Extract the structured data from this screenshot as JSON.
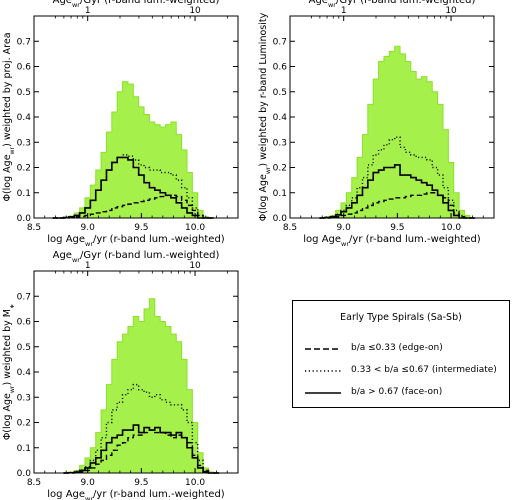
{
  "fill_color": "#a6f04c",
  "fill_edge_color": "#8ee02a",
  "legend": {
    "title": "Early Type Spirals (Sa-Sb)",
    "items": [
      {
        "style": "dashed",
        "label": "b/a ≤0.33 (edge-on)"
      },
      {
        "style": "dotted",
        "label": "0.33 < b/a ≤0.67 (intermediate)"
      },
      {
        "style": "solid",
        "label": "b/a > 0.67 (face-on)"
      }
    ]
  },
  "chart_data": [
    {
      "type": "area",
      "top_xlabel": "Age_wr/Gyr (r-band lum.-weighted)",
      "top_ticks": [
        {
          "value": 1,
          "label": "1"
        },
        {
          "value": 10,
          "label": "10"
        }
      ],
      "xlabel": "log Age_wr/yr (r-band lum.-weighted)",
      "ylabel": "Φ(log Age_wr) weighted by proj. Area",
      "xlim": [
        8.5,
        10.4
      ],
      "ylim": [
        0.0,
        0.8
      ],
      "x_ticks": [
        8.5,
        9.0,
        9.5,
        10.0
      ],
      "x_tick_labels": [
        "8.5",
        "9.0",
        "9.5",
        "10.0"
      ],
      "y_ticks": [
        0.0,
        0.1,
        0.2,
        0.3,
        0.4,
        0.5,
        0.6,
        0.7
      ],
      "y_tick_labels": [
        "0.0",
        "0.1",
        "0.2",
        "0.3",
        "0.4",
        "0.5",
        "0.6",
        "0.7"
      ],
      "x": [
        8.7,
        8.75,
        8.8,
        8.85,
        8.9,
        8.95,
        9.0,
        9.05,
        9.1,
        9.15,
        9.2,
        9.25,
        9.3,
        9.35,
        9.4,
        9.45,
        9.5,
        9.55,
        9.6,
        9.65,
        9.7,
        9.75,
        9.8,
        9.85,
        9.9,
        9.95,
        10.0,
        10.05,
        10.1,
        10.15
      ],
      "series": [
        {
          "style": "fill",
          "values": [
            0.0,
            0.0,
            0.003,
            0.008,
            0.02,
            0.04,
            0.08,
            0.13,
            0.19,
            0.26,
            0.34,
            0.42,
            0.5,
            0.54,
            0.53,
            0.48,
            0.44,
            0.41,
            0.38,
            0.37,
            0.36,
            0.37,
            0.38,
            0.33,
            0.27,
            0.18,
            0.1,
            0.03,
            0.005,
            0.0
          ]
        },
        {
          "style": "dotted",
          "values": [
            0.0,
            0.0,
            0.002,
            0.005,
            0.01,
            0.02,
            0.04,
            0.07,
            0.11,
            0.15,
            0.19,
            0.22,
            0.24,
            0.25,
            0.245,
            0.23,
            0.21,
            0.2,
            0.19,
            0.19,
            0.18,
            0.18,
            0.17,
            0.15,
            0.12,
            0.08,
            0.04,
            0.01,
            0.0,
            0.0
          ]
        },
        {
          "style": "solid",
          "values": [
            0.0,
            0.0,
            0.002,
            0.005,
            0.01,
            0.02,
            0.04,
            0.07,
            0.11,
            0.15,
            0.19,
            0.22,
            0.24,
            0.24,
            0.23,
            0.2,
            0.17,
            0.14,
            0.12,
            0.11,
            0.1,
            0.09,
            0.08,
            0.06,
            0.04,
            0.02,
            0.01,
            0.0,
            0.0,
            0.0
          ]
        },
        {
          "style": "dashed",
          "values": [
            0.0,
            0.0,
            0.0,
            0.002,
            0.004,
            0.006,
            0.01,
            0.015,
            0.02,
            0.025,
            0.03,
            0.04,
            0.045,
            0.05,
            0.055,
            0.06,
            0.065,
            0.07,
            0.075,
            0.08,
            0.085,
            0.09,
            0.09,
            0.085,
            0.07,
            0.05,
            0.03,
            0.01,
            0.0,
            0.0
          ]
        }
      ]
    },
    {
      "type": "area",
      "top_xlabel": "Age_wr/Gyr (r-band lum.-weighted)",
      "top_ticks": [
        {
          "value": 1,
          "label": "1"
        },
        {
          "value": 10,
          "label": "10"
        }
      ],
      "xlabel": "log Age_wr/yr (r-band lum.-weighted)",
      "ylabel": "Φ(log Age_wr) weighted by r-band Luminosity",
      "xlim": [
        8.5,
        10.4
      ],
      "ylim": [
        0.0,
        0.8
      ],
      "x_ticks": [
        8.5,
        9.0,
        9.5,
        10.0
      ],
      "x_tick_labels": [
        "8.5",
        "9.0",
        "9.5",
        "10.0"
      ],
      "y_ticks": [
        0.0,
        0.1,
        0.2,
        0.3,
        0.4,
        0.5,
        0.6,
        0.7
      ],
      "y_tick_labels": [
        "0.0",
        "0.1",
        "0.2",
        "0.3",
        "0.4",
        "0.5",
        "0.6",
        "0.7"
      ],
      "x": [
        8.8,
        8.85,
        8.9,
        8.95,
        9.0,
        9.05,
        9.1,
        9.15,
        9.2,
        9.25,
        9.3,
        9.35,
        9.4,
        9.45,
        9.5,
        9.55,
        9.6,
        9.65,
        9.7,
        9.75,
        9.8,
        9.85,
        9.9,
        9.95,
        10.0,
        10.05,
        10.1,
        10.15,
        10.2
      ],
      "series": [
        {
          "style": "fill",
          "values": [
            0.0,
            0.005,
            0.01,
            0.03,
            0.06,
            0.1,
            0.16,
            0.24,
            0.33,
            0.45,
            0.55,
            0.62,
            0.64,
            0.66,
            0.68,
            0.65,
            0.62,
            0.58,
            0.55,
            0.56,
            0.54,
            0.5,
            0.45,
            0.35,
            0.22,
            0.1,
            0.03,
            0.01,
            0.0
          ]
        },
        {
          "style": "dotted",
          "values": [
            0.0,
            0.003,
            0.006,
            0.015,
            0.03,
            0.05,
            0.08,
            0.12,
            0.16,
            0.21,
            0.25,
            0.27,
            0.29,
            0.31,
            0.32,
            0.28,
            0.26,
            0.25,
            0.24,
            0.24,
            0.23,
            0.2,
            0.17,
            0.12,
            0.07,
            0.03,
            0.01,
            0.0,
            0.0
          ]
        },
        {
          "style": "solid",
          "values": [
            0.0,
            0.002,
            0.005,
            0.012,
            0.025,
            0.04,
            0.06,
            0.09,
            0.12,
            0.15,
            0.18,
            0.19,
            0.2,
            0.2,
            0.21,
            0.17,
            0.17,
            0.16,
            0.15,
            0.14,
            0.13,
            0.11,
            0.09,
            0.06,
            0.03,
            0.01,
            0.0,
            0.0,
            0.0
          ]
        },
        {
          "style": "dashed",
          "values": [
            0.0,
            0.0,
            0.002,
            0.005,
            0.01,
            0.015,
            0.02,
            0.03,
            0.04,
            0.05,
            0.06,
            0.065,
            0.07,
            0.075,
            0.08,
            0.08,
            0.085,
            0.09,
            0.09,
            0.095,
            0.1,
            0.1,
            0.09,
            0.08,
            0.05,
            0.02,
            0.005,
            0.0,
            0.0
          ]
        }
      ]
    },
    {
      "type": "area",
      "top_xlabel": "Age_wr/Gyr (r-band lum.-weighted)",
      "top_ticks": [
        {
          "value": 1,
          "label": "1"
        },
        {
          "value": 10,
          "label": "10"
        }
      ],
      "xlabel": "log Age_wr/yr (r-band lum.-weighted)",
      "ylabel": "Φ(log Age_wr) weighted by M*",
      "xlim": [
        8.5,
        10.4
      ],
      "ylim": [
        0.0,
        0.8
      ],
      "x_ticks": [
        8.5,
        9.0,
        9.5,
        10.0
      ],
      "x_tick_labels": [
        "8.5",
        "9.0",
        "9.5",
        "10.0"
      ],
      "y_ticks": [
        0.0,
        0.1,
        0.2,
        0.3,
        0.4,
        0.5,
        0.6,
        0.7
      ],
      "y_tick_labels": [
        "0.0",
        "0.1",
        "0.2",
        "0.3",
        "0.4",
        "0.5",
        "0.6",
        "0.7"
      ],
      "x": [
        8.8,
        8.85,
        8.9,
        8.95,
        9.0,
        9.05,
        9.1,
        9.15,
        9.2,
        9.25,
        9.3,
        9.35,
        9.4,
        9.45,
        9.5,
        9.55,
        9.6,
        9.65,
        9.7,
        9.75,
        9.8,
        9.85,
        9.9,
        9.95,
        10.0,
        10.05,
        10.1,
        10.15,
        10.2
      ],
      "series": [
        {
          "style": "fill",
          "values": [
            0.0,
            0.004,
            0.01,
            0.03,
            0.06,
            0.1,
            0.16,
            0.25,
            0.35,
            0.45,
            0.52,
            0.55,
            0.58,
            0.62,
            0.6,
            0.65,
            0.69,
            0.62,
            0.6,
            0.58,
            0.55,
            0.52,
            0.45,
            0.33,
            0.2,
            0.08,
            0.02,
            0.004,
            0.0
          ]
        },
        {
          "style": "dotted",
          "values": [
            0.0,
            0.002,
            0.005,
            0.012,
            0.025,
            0.05,
            0.09,
            0.14,
            0.2,
            0.25,
            0.28,
            0.31,
            0.33,
            0.35,
            0.33,
            0.32,
            0.3,
            0.31,
            0.29,
            0.28,
            0.27,
            0.27,
            0.25,
            0.2,
            0.12,
            0.05,
            0.01,
            0.0,
            0.0
          ]
        },
        {
          "style": "solid",
          "values": [
            0.0,
            0.001,
            0.004,
            0.01,
            0.02,
            0.04,
            0.06,
            0.09,
            0.12,
            0.14,
            0.15,
            0.17,
            0.17,
            0.19,
            0.16,
            0.18,
            0.17,
            0.18,
            0.16,
            0.16,
            0.15,
            0.16,
            0.14,
            0.1,
            0.06,
            0.02,
            0.005,
            0.0,
            0.0
          ]
        },
        {
          "style": "dashed",
          "values": [
            0.0,
            0.0,
            0.002,
            0.005,
            0.01,
            0.02,
            0.035,
            0.05,
            0.07,
            0.09,
            0.11,
            0.12,
            0.14,
            0.15,
            0.15,
            0.16,
            0.17,
            0.16,
            0.16,
            0.15,
            0.14,
            0.15,
            0.14,
            0.12,
            0.07,
            0.03,
            0.01,
            0.0,
            0.0
          ]
        }
      ]
    }
  ]
}
